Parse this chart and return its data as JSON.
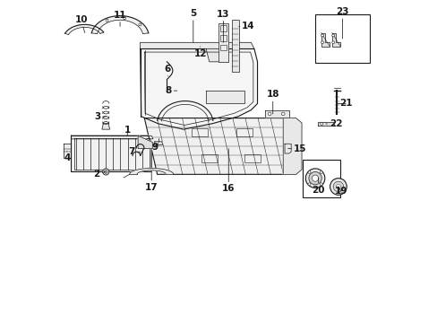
{
  "bg_color": "#ffffff",
  "line_color": "#1a1a1a",
  "lw_main": 0.8,
  "lw_thin": 0.5,
  "lw_thick": 1.2,
  "labels": {
    "1": [
      0.215,
      0.598,
      0.215,
      0.57
    ],
    "2": [
      0.148,
      0.468,
      0.12,
      0.468
    ],
    "3": [
      0.148,
      0.635,
      0.122,
      0.64
    ],
    "4": [
      0.04,
      0.56,
      0.04,
      0.535
    ],
    "5": [
      0.42,
      0.93,
      0.42,
      0.958
    ],
    "6": [
      0.34,
      0.75,
      0.34,
      0.778
    ],
    "7": [
      0.248,
      0.535,
      0.222,
      0.535
    ],
    "8": [
      0.368,
      0.72,
      0.342,
      0.72
    ],
    "9": [
      0.33,
      0.555,
      0.31,
      0.545
    ],
    "10": [
      0.072,
      0.912,
      0.072,
      0.94
    ],
    "11": [
      0.188,
      0.93,
      0.188,
      0.958
    ],
    "12": [
      0.44,
      0.858,
      0.44,
      0.835
    ],
    "13": [
      0.52,
      0.93,
      0.52,
      0.958
    ],
    "14": [
      0.59,
      0.92,
      0.618,
      0.92
    ],
    "15": [
      0.725,
      0.542,
      0.753,
      0.542
    ],
    "16": [
      0.53,
      0.418,
      0.53,
      0.39
    ],
    "17": [
      0.29,
      0.445,
      0.29,
      0.418
    ],
    "18": [
      0.668,
      0.68,
      0.668,
      0.708
    ],
    "19": [
      0.872,
      0.438,
      0.872,
      0.412
    ],
    "20": [
      0.81,
      0.438,
      0.81,
      0.412
    ],
    "21": [
      0.868,
      0.672,
      0.895,
      0.672
    ],
    "22": [
      0.84,
      0.62,
      0.868,
      0.62
    ],
    "23": [
      0.87,
      0.93,
      0.87,
      0.958
    ]
  },
  "figsize": [
    4.89,
    3.6
  ],
  "dpi": 100
}
